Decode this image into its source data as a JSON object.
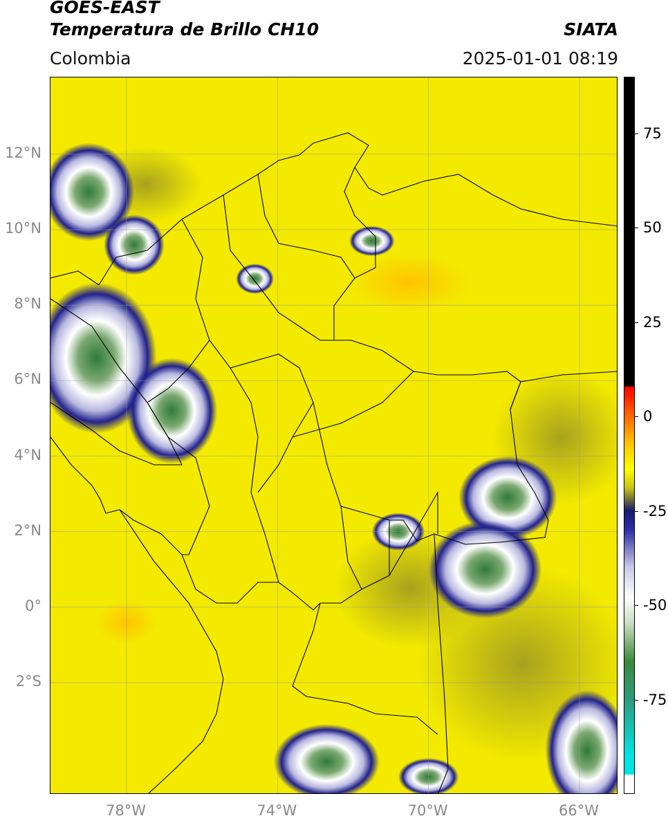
{
  "header": {
    "satellite": "GOES-EAST",
    "product": "Temperatura de Brillo CH10",
    "brand": "SIATA",
    "region": "Colombia",
    "timestamp": "2025-01-01 08:19"
  },
  "map": {
    "lon_range": [
      -80,
      -65
    ],
    "lat_range": [
      -5,
      14
    ],
    "lat_ticks": [
      {
        "value": 12,
        "label": "12°N"
      },
      {
        "value": 10,
        "label": "10°N"
      },
      {
        "value": 8,
        "label": "8°N"
      },
      {
        "value": 6,
        "label": "6°N"
      },
      {
        "value": 4,
        "label": "4°N"
      },
      {
        "value": 2,
        "label": "2°N"
      },
      {
        "value": 0,
        "label": "0°"
      },
      {
        "value": -2,
        "label": "2°S"
      }
    ],
    "lon_ticks": [
      {
        "value": -78,
        "label": "78°W"
      },
      {
        "value": -74,
        "label": "74°W"
      },
      {
        "value": -70,
        "label": "70°W"
      },
      {
        "value": -66,
        "label": "66°W"
      }
    ],
    "cloud_cells": [
      {
        "lon": -79.0,
        "lat": 11.0,
        "rx": 1.2,
        "ry": 1.3
      },
      {
        "lon": -77.8,
        "lat": 9.6,
        "rx": 0.8,
        "ry": 0.8
      },
      {
        "lon": -78.8,
        "lat": 6.6,
        "rx": 1.6,
        "ry": 2.0
      },
      {
        "lon": -76.8,
        "lat": 5.2,
        "rx": 1.2,
        "ry": 1.4
      },
      {
        "lon": -74.6,
        "lat": 8.7,
        "rx": 0.5,
        "ry": 0.4
      },
      {
        "lon": -71.5,
        "lat": 9.7,
        "rx": 0.6,
        "ry": 0.4
      },
      {
        "lon": -67.9,
        "lat": 2.9,
        "rx": 1.3,
        "ry": 1.1
      },
      {
        "lon": -68.5,
        "lat": 1.0,
        "rx": 1.5,
        "ry": 1.3
      },
      {
        "lon": -70.8,
        "lat": 2.0,
        "rx": 0.7,
        "ry": 0.5
      },
      {
        "lon": -72.7,
        "lat": -4.1,
        "rx": 1.4,
        "ry": 1.0
      },
      {
        "lon": -70.0,
        "lat": -4.5,
        "rx": 0.8,
        "ry": 0.5
      },
      {
        "lon": -65.8,
        "lat": -3.8,
        "rx": 1.1,
        "ry": 1.6
      }
    ],
    "warm_spots": [
      {
        "lon": -70.5,
        "lat": 8.6,
        "rx": 1.6,
        "ry": 0.8
      },
      {
        "lon": -78.0,
        "lat": -0.4,
        "rx": 0.8,
        "ry": 0.6
      }
    ],
    "dim_regions": [
      {
        "lon": -67.5,
        "lat": -1.5,
        "rx": 2.8,
        "ry": 2.6
      },
      {
        "lon": -70.5,
        "lat": 0.5,
        "rx": 2.0,
        "ry": 1.6
      },
      {
        "lon": -66.5,
        "lat": 4.5,
        "rx": 1.8,
        "ry": 1.8
      },
      {
        "lon": -77.5,
        "lat": 11.2,
        "rx": 1.5,
        "ry": 1.0
      }
    ]
  },
  "colorbar": {
    "range": [
      -100,
      90
    ],
    "ticks": [
      {
        "value": 75,
        "label": "75"
      },
      {
        "value": 50,
        "label": "50"
      },
      {
        "value": 25,
        "label": "25"
      },
      {
        "value": 0,
        "label": "0"
      },
      {
        "value": -25,
        "label": "-25"
      },
      {
        "value": -50,
        "label": "-50"
      },
      {
        "value": -75,
        "label": "-75"
      }
    ],
    "stops": [
      {
        "value": 90,
        "color": "#000000"
      },
      {
        "value": 8,
        "color": "#000000"
      },
      {
        "value": 7.9,
        "color": "#ff0000"
      },
      {
        "value": 0,
        "color": "#ff6a00"
      },
      {
        "value": -8,
        "color": "#ffcc00"
      },
      {
        "value": -14,
        "color": "#ffff00"
      },
      {
        "value": -19,
        "color": "#c8c21a"
      },
      {
        "value": -22,
        "color": "#6f6f3a"
      },
      {
        "value": -25,
        "color": "#1a1a6e"
      },
      {
        "value": -30,
        "color": "#2d2da3"
      },
      {
        "value": -40,
        "color": "#c8c8e8"
      },
      {
        "value": -48,
        "color": "#ffffff"
      },
      {
        "value": -55,
        "color": "#c8dcc0"
      },
      {
        "value": -65,
        "color": "#3a8a3a"
      },
      {
        "value": -75,
        "color": "#2f9a7a"
      },
      {
        "value": -90,
        "color": "#00e5e5"
      },
      {
        "value": -95,
        "color": "#00e5e5"
      },
      {
        "value": -95.1,
        "color": "#ffffff"
      },
      {
        "value": -100,
        "color": "#ffffff"
      }
    ]
  }
}
